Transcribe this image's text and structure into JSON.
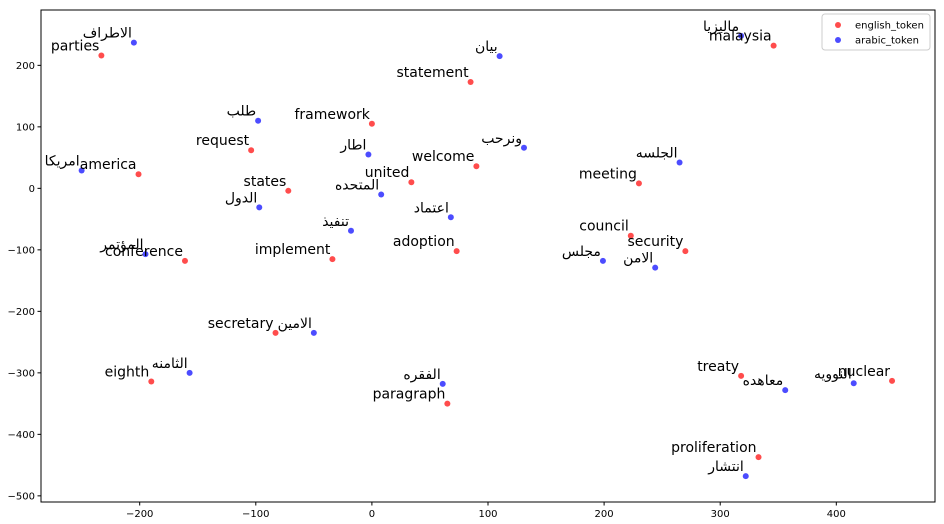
{
  "chart_data": {
    "type": "scatter",
    "title": "",
    "xlabel": "",
    "ylabel": "",
    "xlim": [
      -285,
      485
    ],
    "ylim": [
      -510,
      290
    ],
    "xticks": [
      -200,
      -100,
      0,
      100,
      200,
      300,
      400
    ],
    "yticks": [
      -500,
      -400,
      -300,
      -200,
      -100,
      0,
      100,
      200
    ],
    "grid": false,
    "legend_position": "top-right",
    "series": [
      {
        "name": "english_token",
        "color": "#ff0000",
        "points": [
          {
            "x": -233,
            "y": 216,
            "label": "parties"
          },
          {
            "x": -201,
            "y": 23,
            "label": "america"
          },
          {
            "x": -161,
            "y": -118,
            "label": "conference"
          },
          {
            "x": -190,
            "y": -314,
            "label": "eighth"
          },
          {
            "x": -104,
            "y": 62,
            "label": "request"
          },
          {
            "x": -72,
            "y": -4,
            "label": "states"
          },
          {
            "x": -34,
            "y": -115,
            "label": "implement"
          },
          {
            "x": -83,
            "y": -235,
            "label": "secretary"
          },
          {
            "x": 0,
            "y": 105,
            "label": "framework"
          },
          {
            "x": 34,
            "y": 10,
            "label": "united"
          },
          {
            "x": 85,
            "y": 173,
            "label": "statement"
          },
          {
            "x": 90,
            "y": 36,
            "label": "welcome"
          },
          {
            "x": 73,
            "y": -102,
            "label": "adoption"
          },
          {
            "x": 65,
            "y": -350,
            "label": "paragraph"
          },
          {
            "x": 230,
            "y": 8,
            "label": "meeting"
          },
          {
            "x": 223,
            "y": -77,
            "label": "council"
          },
          {
            "x": 270,
            "y": -102,
            "label": "security"
          },
          {
            "x": 318,
            "y": -305,
            "label": "treaty"
          },
          {
            "x": 333,
            "y": -437,
            "label": "proliferation"
          },
          {
            "x": 346,
            "y": 232,
            "label": "malaysia"
          },
          {
            "x": 448,
            "y": -313,
            "label": "nuclear"
          }
        ]
      },
      {
        "name": "arabic_token",
        "color": "#0000ff",
        "points": [
          {
            "x": -205,
            "y": 237,
            "label": "الاطراف"
          },
          {
            "x": -250,
            "y": 29,
            "label": "امريكا"
          },
          {
            "x": -195,
            "y": -107,
            "label": "المؤتمر"
          },
          {
            "x": -157,
            "y": -300,
            "label": "الثامنه"
          },
          {
            "x": -98,
            "y": 110,
            "label": "طلب"
          },
          {
            "x": -97,
            "y": -31,
            "label": "الدول"
          },
          {
            "x": -18,
            "y": -69,
            "label": "تنفيذ"
          },
          {
            "x": -50,
            "y": -235,
            "label": "الامين"
          },
          {
            "x": -3,
            "y": 55,
            "label": "اطار"
          },
          {
            "x": 8,
            "y": -10,
            "label": "المتحده"
          },
          {
            "x": 110,
            "y": 215,
            "label": "بيان"
          },
          {
            "x": 131,
            "y": 66,
            "label": "ونرحب"
          },
          {
            "x": 68,
            "y": -47,
            "label": "اعتماد"
          },
          {
            "x": 61,
            "y": -318,
            "label": "الفقره"
          },
          {
            "x": 265,
            "y": 42,
            "label": "الجلسه"
          },
          {
            "x": 199,
            "y": -118,
            "label": "مجلس"
          },
          {
            "x": 244,
            "y": -129,
            "label": "الامن"
          },
          {
            "x": 356,
            "y": -328,
            "label": "معاهده"
          },
          {
            "x": 322,
            "y": -468,
            "label": "انتشار"
          },
          {
            "x": 318,
            "y": 248,
            "label": "ماليزيا"
          },
          {
            "x": 415,
            "y": -317,
            "label": "النوويه"
          }
        ]
      }
    ]
  }
}
